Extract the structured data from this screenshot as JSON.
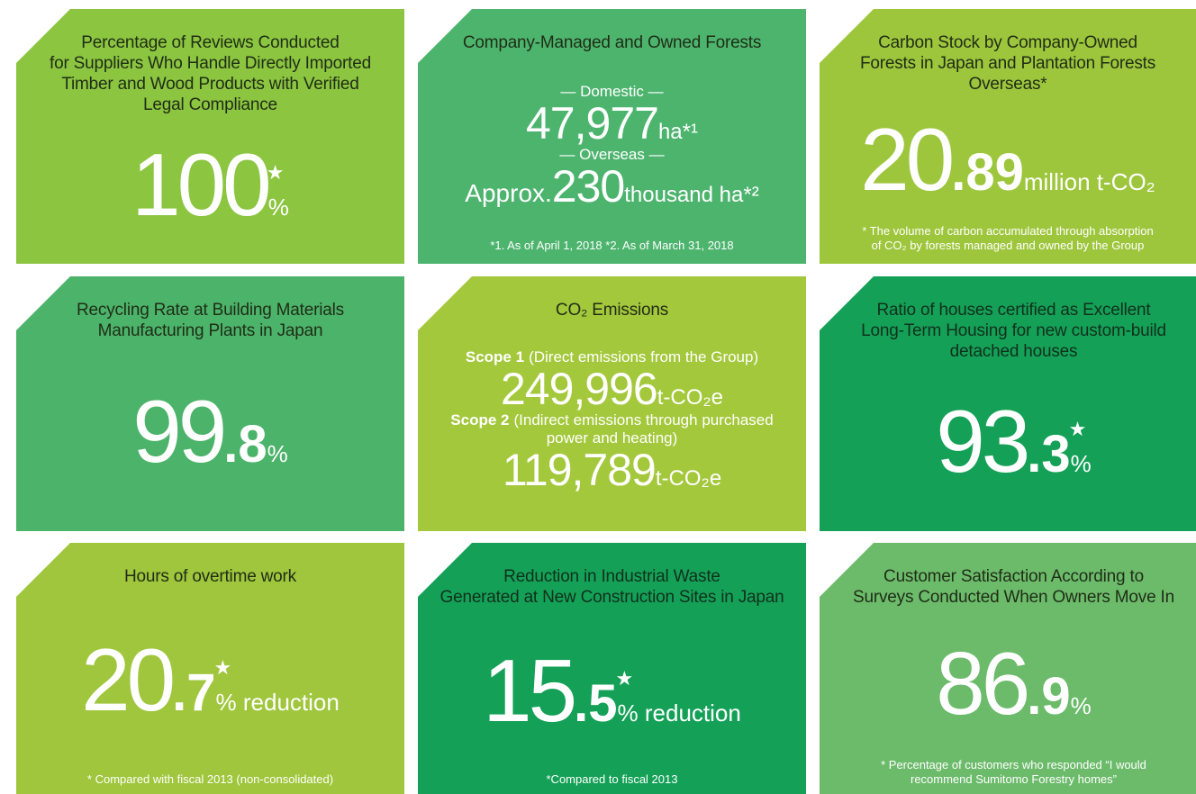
{
  "tiles": [
    {
      "title": [
        "Percentage of Reviews Conducted",
        "for Suppliers Who Handle Directly Imported",
        "Timber and Wood Products with Verified",
        "Legal Compliance"
      ],
      "figures": [
        {
          "value": "100",
          "star": "★",
          "unit": "%"
        }
      ]
    },
    {
      "title": [
        "Company-Managed and Owned Forests"
      ],
      "figures": [
        {
          "label": "— Domestic —",
          "value": "47,977",
          "unit": "ha*¹"
        },
        {
          "label": "— Overseas —",
          "prefix": "Approx.",
          "value": "230",
          "unit": "thousand ha*²"
        }
      ],
      "note": [
        "*1. As of April 1, 2018  *2. As of March 31, 2018"
      ]
    },
    {
      "title": [
        "Carbon Stock by Company-Owned",
        "Forests in Japan and Plantation Forests",
        "Overseas*"
      ],
      "figures": [
        {
          "value": "20",
          "decimal": ".89",
          "unit": "million t-CO₂"
        }
      ],
      "note": [
        "* The volume of carbon accumulated through absorption",
        "of CO₂ by forests managed and owned by the Group"
      ]
    },
    {
      "title": [
        "Recycling Rate at Building Materials",
        "Manufacturing Plants in Japan"
      ],
      "figures": [
        {
          "value": "99",
          "decimal": ".8",
          "unit": "%"
        }
      ]
    },
    {
      "title": [
        "CO₂ Emissions"
      ],
      "figures": [
        {
          "label": "Scope 1",
          "desc": [
            "(Direct emissions from the Group)"
          ],
          "value": "249,996",
          "unit": "t-CO₂e"
        },
        {
          "label": "Scope 2",
          "desc": [
            "(Indirect emissions through purchased",
            "power and heating)"
          ],
          "value": "119,789",
          "unit": "t-CO₂e"
        }
      ]
    },
    {
      "title": [
        "Ratio of houses certified as Excellent",
        "Long-Term Housing for new custom-build",
        "detached houses"
      ],
      "figures": [
        {
          "value": "93",
          "decimal": ".3",
          "star": "★",
          "unit": "%"
        }
      ]
    },
    {
      "title": [
        "Hours of overtime work"
      ],
      "figures": [
        {
          "value": "20",
          "decimal": ".7",
          "star": "★",
          "unit": "% reduction"
        }
      ],
      "note": [
        "* Compared with fiscal 2013 (non-consolidated)"
      ]
    },
    {
      "title": [
        "Reduction in Industrial Waste",
        "Generated at New Construction Sites in Japan"
      ],
      "figures": [
        {
          "value": "15",
          "decimal": ".5",
          "star": "★",
          "unit": "% reduction"
        }
      ],
      "note": [
        "*Compared to fiscal 2013"
      ]
    },
    {
      "title": [
        "Customer Satisfaction According to",
        "Surveys Conducted When Owners Move In"
      ],
      "figures": [
        {
          "value": "86",
          "decimal": ".9",
          "unit": "%"
        }
      ],
      "note": [
        "* Percentage of customers who responded “I would",
        "recommend Sumitomo Forestry homes”"
      ]
    }
  ]
}
